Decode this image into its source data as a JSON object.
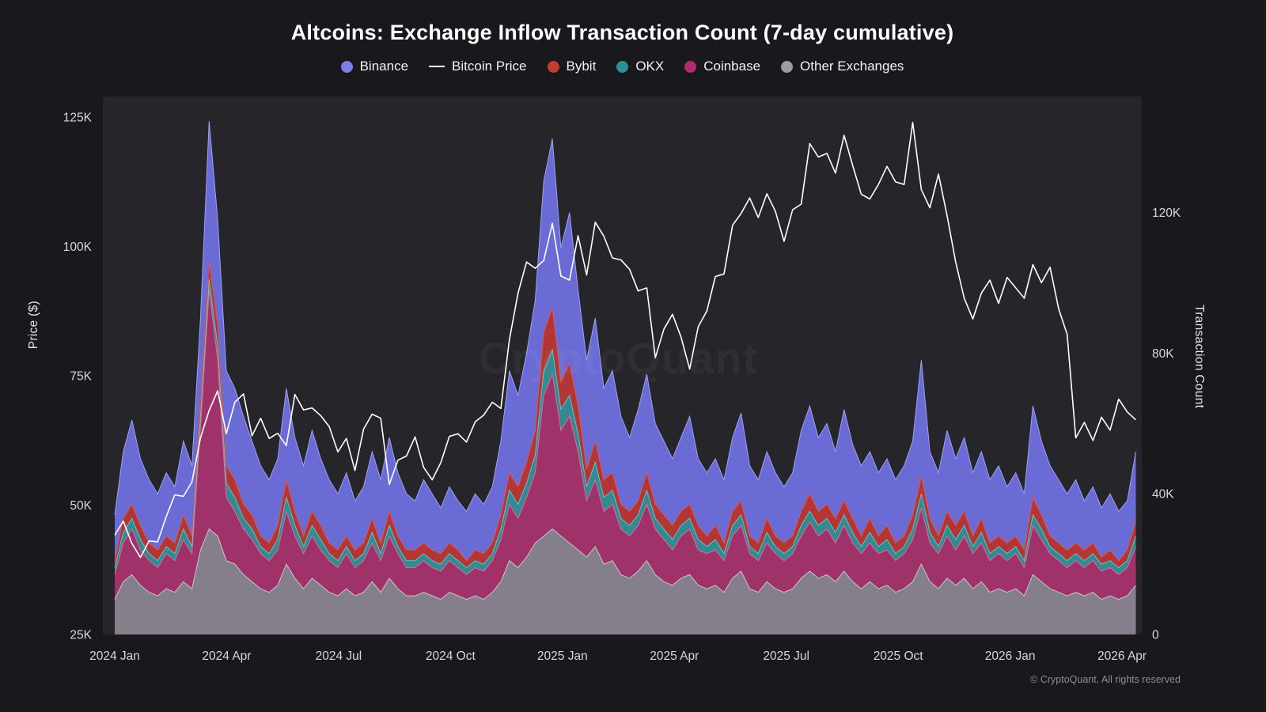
{
  "page": {
    "watermark": "CryptoQuant",
    "footer": "© CryptoQuant. All rights reserved"
  },
  "legend": {
    "items": [
      {
        "key": "binance",
        "label": "Binance",
        "marker": "dot",
        "color": "#7b7de8"
      },
      {
        "key": "bitcoin-price",
        "label": "Bitcoin Price",
        "marker": "line",
        "color": "#ffffff"
      },
      {
        "key": "bybit",
        "label": "Bybit",
        "marker": "dot",
        "color": "#c23a30"
      },
      {
        "key": "okx",
        "label": "OKX",
        "marker": "dot",
        "color": "#2d8e96"
      },
      {
        "key": "coinbase",
        "label": "Coinbase",
        "marker": "dot",
        "color": "#b42a6f"
      },
      {
        "key": "other-exchanges",
        "label": "Other Exchanges",
        "marker": "dot",
        "color": "#9b9ba4"
      }
    ]
  },
  "chart_data": {
    "type": "area",
    "stacked": true,
    "title": "Altcoins: Exchange Inflow Transaction Count (7-day cumulative)",
    "x_unit": "months since 2024-01-01, weekly sampling",
    "x_start": 0,
    "x_step": 0.23,
    "n_points": 120,
    "axes": {
      "left": {
        "label": "Price ($)",
        "unit": "thousand USD",
        "range": [
          25,
          129
        ],
        "ticks": [
          {
            "label": "25K",
            "value": 25
          },
          {
            "label": "50K",
            "value": 50
          },
          {
            "label": "75K",
            "value": 75
          },
          {
            "label": "100K",
            "value": 100
          },
          {
            "label": "125K",
            "value": 125
          }
        ]
      },
      "right": {
        "label": "Transaction Count",
        "unit": "thousand transactions",
        "range": [
          0,
          153
        ],
        "ticks": [
          {
            "label": "0",
            "value": 0
          },
          {
            "label": "40K",
            "value": 40
          },
          {
            "label": "80K",
            "value": 80
          },
          {
            "label": "120K",
            "value": 120
          }
        ]
      },
      "x": {
        "ticks": [
          {
            "label": "2024 Jan",
            "month": 0
          },
          {
            "label": "2024 Apr",
            "month": 3
          },
          {
            "label": "2024 Jul",
            "month": 6
          },
          {
            "label": "2024 Oct",
            "month": 9
          },
          {
            "label": "2025 Jan",
            "month": 12
          },
          {
            "label": "2025 Apr",
            "month": 15
          },
          {
            "label": "2025 Jul",
            "month": 18
          },
          {
            "label": "2025 Oct",
            "month": 21
          },
          {
            "label": "2026 Jan",
            "month": 24
          },
          {
            "label": "2026 Apr",
            "month": 27
          }
        ]
      }
    },
    "series": [
      {
        "key": "other-exchanges",
        "name": "Other Exchanges",
        "axis": "right",
        "color": "#84848e",
        "edge": "#c7c7cf",
        "values": [
          10,
          15,
          17,
          14,
          12,
          11,
          13,
          12,
          15,
          13,
          24,
          30,
          28,
          21,
          20,
          17,
          15,
          13,
          12,
          14,
          20,
          16,
          13,
          16,
          14,
          12,
          11,
          13,
          11,
          12,
          15,
          12,
          16,
          13,
          11,
          11,
          12,
          11,
          10,
          12,
          11,
          10,
          11,
          10,
          12,
          15,
          21,
          19,
          22,
          26,
          28,
          30,
          28,
          26,
          24,
          22,
          25,
          20,
          21,
          17,
          16,
          18,
          21,
          17,
          15,
          14,
          16,
          17,
          14,
          13,
          14,
          12,
          16,
          18,
          13,
          12,
          15,
          13,
          12,
          13,
          16,
          18,
          16,
          17,
          15,
          18,
          15,
          13,
          15,
          13,
          14,
          12,
          13,
          15,
          20,
          15,
          13,
          16,
          14,
          16,
          13,
          15,
          12,
          13,
          12,
          13,
          11,
          17,
          15,
          13,
          12,
          11,
          12,
          11,
          12,
          10,
          11,
          10,
          11,
          14
        ]
      },
      {
        "key": "coinbase",
        "name": "Coinbase",
        "axis": "right",
        "color": "#a62d68",
        "edge": "#e0699d",
        "values": [
          7,
          11,
          13,
          10,
          9,
          8,
          10,
          9,
          12,
          10,
          35,
          68,
          50,
          18,
          15,
          13,
          12,
          10,
          9,
          10,
          15,
          12,
          10,
          12,
          10,
          9,
          8,
          10,
          8,
          9,
          11,
          9,
          12,
          10,
          8,
          8,
          9,
          8,
          8,
          9,
          8,
          7,
          8,
          8,
          9,
          12,
          16,
          14,
          17,
          20,
          40,
          44,
          30,
          36,
          28,
          16,
          19,
          15,
          16,
          13,
          12,
          13,
          16,
          13,
          12,
          10,
          12,
          13,
          10,
          10,
          10,
          9,
          12,
          13,
          10,
          9,
          11,
          10,
          9,
          10,
          12,
          14,
          12,
          13,
          11,
          13,
          11,
          10,
          11,
          10,
          10,
          9,
          10,
          12,
          16,
          11,
          10,
          12,
          10,
          12,
          10,
          11,
          9,
          10,
          9,
          10,
          8,
          14,
          12,
          10,
          9,
          8,
          9,
          8,
          9,
          8,
          8,
          7,
          8,
          11
        ]
      },
      {
        "key": "okx",
        "name": "OKX",
        "axis": "right",
        "color": "#2e8e97",
        "edge": "#59c6d1",
        "values": [
          2,
          3,
          3,
          3,
          2,
          2,
          2,
          2,
          3,
          2,
          3,
          3,
          4,
          4,
          4,
          3,
          3,
          2,
          2,
          3,
          4,
          3,
          2,
          3,
          3,
          2,
          2,
          2,
          2,
          2,
          3,
          2,
          3,
          2,
          2,
          2,
          2,
          2,
          2,
          2,
          2,
          2,
          2,
          2,
          2,
          3,
          4,
          4,
          4,
          5,
          7,
          7,
          6,
          6,
          5,
          4,
          5,
          4,
          4,
          3,
          3,
          3,
          4,
          3,
          3,
          3,
          3,
          3,
          3,
          2,
          3,
          2,
          3,
          3,
          2,
          2,
          3,
          2,
          2,
          2,
          3,
          3,
          3,
          3,
          3,
          3,
          3,
          2,
          3,
          2,
          3,
          2,
          2,
          3,
          4,
          3,
          2,
          3,
          3,
          3,
          2,
          3,
          2,
          2,
          2,
          2,
          2,
          3,
          3,
          2,
          2,
          2,
          2,
          2,
          2,
          2,
          2,
          2,
          2,
          3
        ]
      },
      {
        "key": "bybit",
        "name": "Bybit",
        "axis": "right",
        "color": "#b5342c",
        "edge": "#e25649",
        "values": [
          2,
          4,
          4,
          4,
          3,
          3,
          3,
          3,
          4,
          3,
          5,
          5,
          6,
          5,
          5,
          4,
          4,
          3,
          3,
          4,
          5,
          4,
          3,
          4,
          4,
          3,
          3,
          3,
          3,
          3,
          4,
          3,
          4,
          3,
          3,
          3,
          3,
          3,
          3,
          3,
          3,
          2,
          3,
          3,
          3,
          4,
          5,
          5,
          6,
          7,
          11,
          12,
          8,
          9,
          8,
          5,
          6,
          5,
          5,
          4,
          4,
          4,
          5,
          4,
          4,
          4,
          4,
          4,
          4,
          3,
          4,
          3,
          4,
          4,
          3,
          3,
          4,
          3,
          3,
          3,
          4,
          5,
          4,
          4,
          4,
          4,
          4,
          3,
          4,
          3,
          4,
          3,
          3,
          4,
          5,
          4,
          3,
          4,
          4,
          4,
          3,
          4,
          3,
          3,
          3,
          3,
          3,
          5,
          4,
          3,
          3,
          3,
          3,
          3,
          3,
          2,
          3,
          2,
          3,
          4
        ]
      },
      {
        "key": "binance",
        "name": "Binance",
        "axis": "right",
        "color": "#6e6fdd",
        "edge": "#9fa1f2",
        "values": [
          13,
          19,
          24,
          19,
          18,
          16,
          18,
          16,
          21,
          20,
          23,
          40,
          30,
          27,
          26,
          25,
          21,
          20,
          18,
          19,
          26,
          21,
          20,
          23,
          19,
          18,
          16,
          18,
          14,
          16,
          19,
          18,
          21,
          18,
          16,
          14,
          18,
          16,
          13,
          16,
          14,
          14,
          16,
          14,
          16,
          21,
          29,
          26,
          31,
          37,
          43,
          48,
          38,
          43,
          33,
          31,
          35,
          26,
          29,
          25,
          21,
          26,
          28,
          23,
          21,
          19,
          21,
          25,
          19,
          18,
          19,
          18,
          21,
          25,
          20,
          18,
          19,
          18,
          16,
          18,
          23,
          25,
          21,
          23,
          19,
          26,
          21,
          20,
          19,
          18,
          19,
          18,
          20,
          21,
          33,
          19,
          18,
          23,
          19,
          21,
          18,
          19,
          18,
          20,
          16,
          18,
          16,
          26,
          21,
          20,
          18,
          16,
          18,
          14,
          16,
          14,
          16,
          14,
          14,
          20
        ]
      }
    ],
    "overlay_line": {
      "key": "bitcoin-price",
      "name": "Bitcoin Price",
      "axis": "left",
      "unit": "thousand USD",
      "color": "#ffffff",
      "values": [
        44.2,
        46.9,
        42.6,
        39.9,
        43.1,
        42.9,
        47.8,
        52.0,
        51.7,
        54.5,
        63.0,
        68.3,
        72.1,
        63.8,
        69.9,
        71.5,
        63.4,
        66.8,
        62.9,
        63.9,
        61.5,
        71.4,
        68.4,
        68.8,
        67.3,
        65.2,
        60.3,
        62.9,
        56.7,
        64.7,
        67.6,
        66.8,
        54.0,
        58.7,
        59.5,
        63.2,
        57.3,
        54.9,
        58.2,
        63.3,
        63.8,
        62.2,
        66.1,
        67.4,
        69.9,
        68.7,
        82.0,
        91.0,
        97.0,
        95.8,
        97.3,
        104.5,
        94.3,
        93.5,
        102.1,
        94.5,
        104.7,
        102.0,
        97.8,
        97.4,
        95.6,
        91.4,
        92.0,
        78.5,
        84.0,
        86.9,
        82.5,
        76.3,
        84.5,
        87.5,
        94.2,
        94.7,
        104.1,
        106.4,
        109.4,
        105.6,
        110.2,
        106.8,
        101.0,
        107.1,
        108.2,
        119.9,
        117.3,
        118.0,
        114.2,
        121.5,
        115.7,
        110.1,
        109.2,
        112.0,
        115.5,
        112.5,
        112.0,
        124.0,
        111.0,
        107.5,
        114.0,
        106.0,
        97.0,
        90.0,
        86.0,
        91.0,
        93.5,
        89.0,
        94.0,
        92.0,
        90.0,
        96.5,
        93.0,
        96.0,
        88.0,
        83.0,
        63.0,
        66.0,
        62.5,
        67.0,
        64.5,
        70.5,
        68.0,
        66.5
      ]
    }
  }
}
